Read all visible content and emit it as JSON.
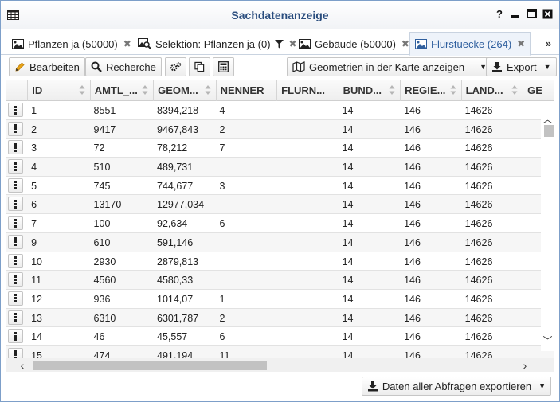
{
  "window": {
    "title": "Sachdatenanzeige"
  },
  "window_buttons": {
    "help": "?"
  },
  "tabs": [
    {
      "label": "Pflanzen ja (50000)",
      "icon": "image-icon"
    },
    {
      "label": "Selektion: Pflanzen ja (0)",
      "icon": "search-image-icon"
    },
    {
      "label": "Gebäude (50000)",
      "icon": "image-icon"
    },
    {
      "label": "Flurstuecke (264)",
      "icon": "image-icon",
      "active": true
    }
  ],
  "toolbar": {
    "edit_label": "Bearbeiten",
    "search_label": "Recherche",
    "show_geometries_label": "Geometrien in der Karte anzeigen",
    "export_label": "Export"
  },
  "columns": [
    "ID",
    "AMTL_...",
    "GEOM...",
    "NENNER",
    "FLURN...",
    "BUND...",
    "REGIE...",
    "LAND...",
    "GE"
  ],
  "rows": [
    [
      "1",
      "8551",
      "8394,218",
      "4",
      "",
      "14",
      "146",
      "14626"
    ],
    [
      "2",
      "9417",
      "9467,843",
      "2",
      "",
      "14",
      "146",
      "14626"
    ],
    [
      "3",
      "72",
      "78,212",
      "7",
      "",
      "14",
      "146",
      "14626"
    ],
    [
      "4",
      "510",
      "489,731",
      "",
      "",
      "14",
      "146",
      "14626"
    ],
    [
      "5",
      "745",
      "744,677",
      "3",
      "",
      "14",
      "146",
      "14626"
    ],
    [
      "6",
      "13170",
      "12977,034",
      "",
      "",
      "14",
      "146",
      "14626"
    ],
    [
      "7",
      "100",
      "92,634",
      "6",
      "",
      "14",
      "146",
      "14626"
    ],
    [
      "9",
      "610",
      "591,146",
      "",
      "",
      "14",
      "146",
      "14626"
    ],
    [
      "10",
      "2930",
      "2879,813",
      "",
      "",
      "14",
      "146",
      "14626"
    ],
    [
      "11",
      "4560",
      "4580,33",
      "",
      "",
      "14",
      "146",
      "14626"
    ],
    [
      "12",
      "936",
      "1014,07",
      "1",
      "",
      "14",
      "146",
      "14626"
    ],
    [
      "13",
      "6310",
      "6301,787",
      "2",
      "",
      "14",
      "146",
      "14626"
    ],
    [
      "14",
      "46",
      "45,557",
      "6",
      "",
      "14",
      "146",
      "14626"
    ],
    [
      "15",
      "474",
      "491,194",
      "11",
      "",
      "14",
      "146",
      "14626"
    ]
  ],
  "footer": {
    "export_all_label": "Daten aller Abfragen exportieren"
  },
  "colors": {
    "title": "#2a4d7e",
    "active_tab": "#2f5f9e",
    "window_border": "#7d9fc9"
  }
}
